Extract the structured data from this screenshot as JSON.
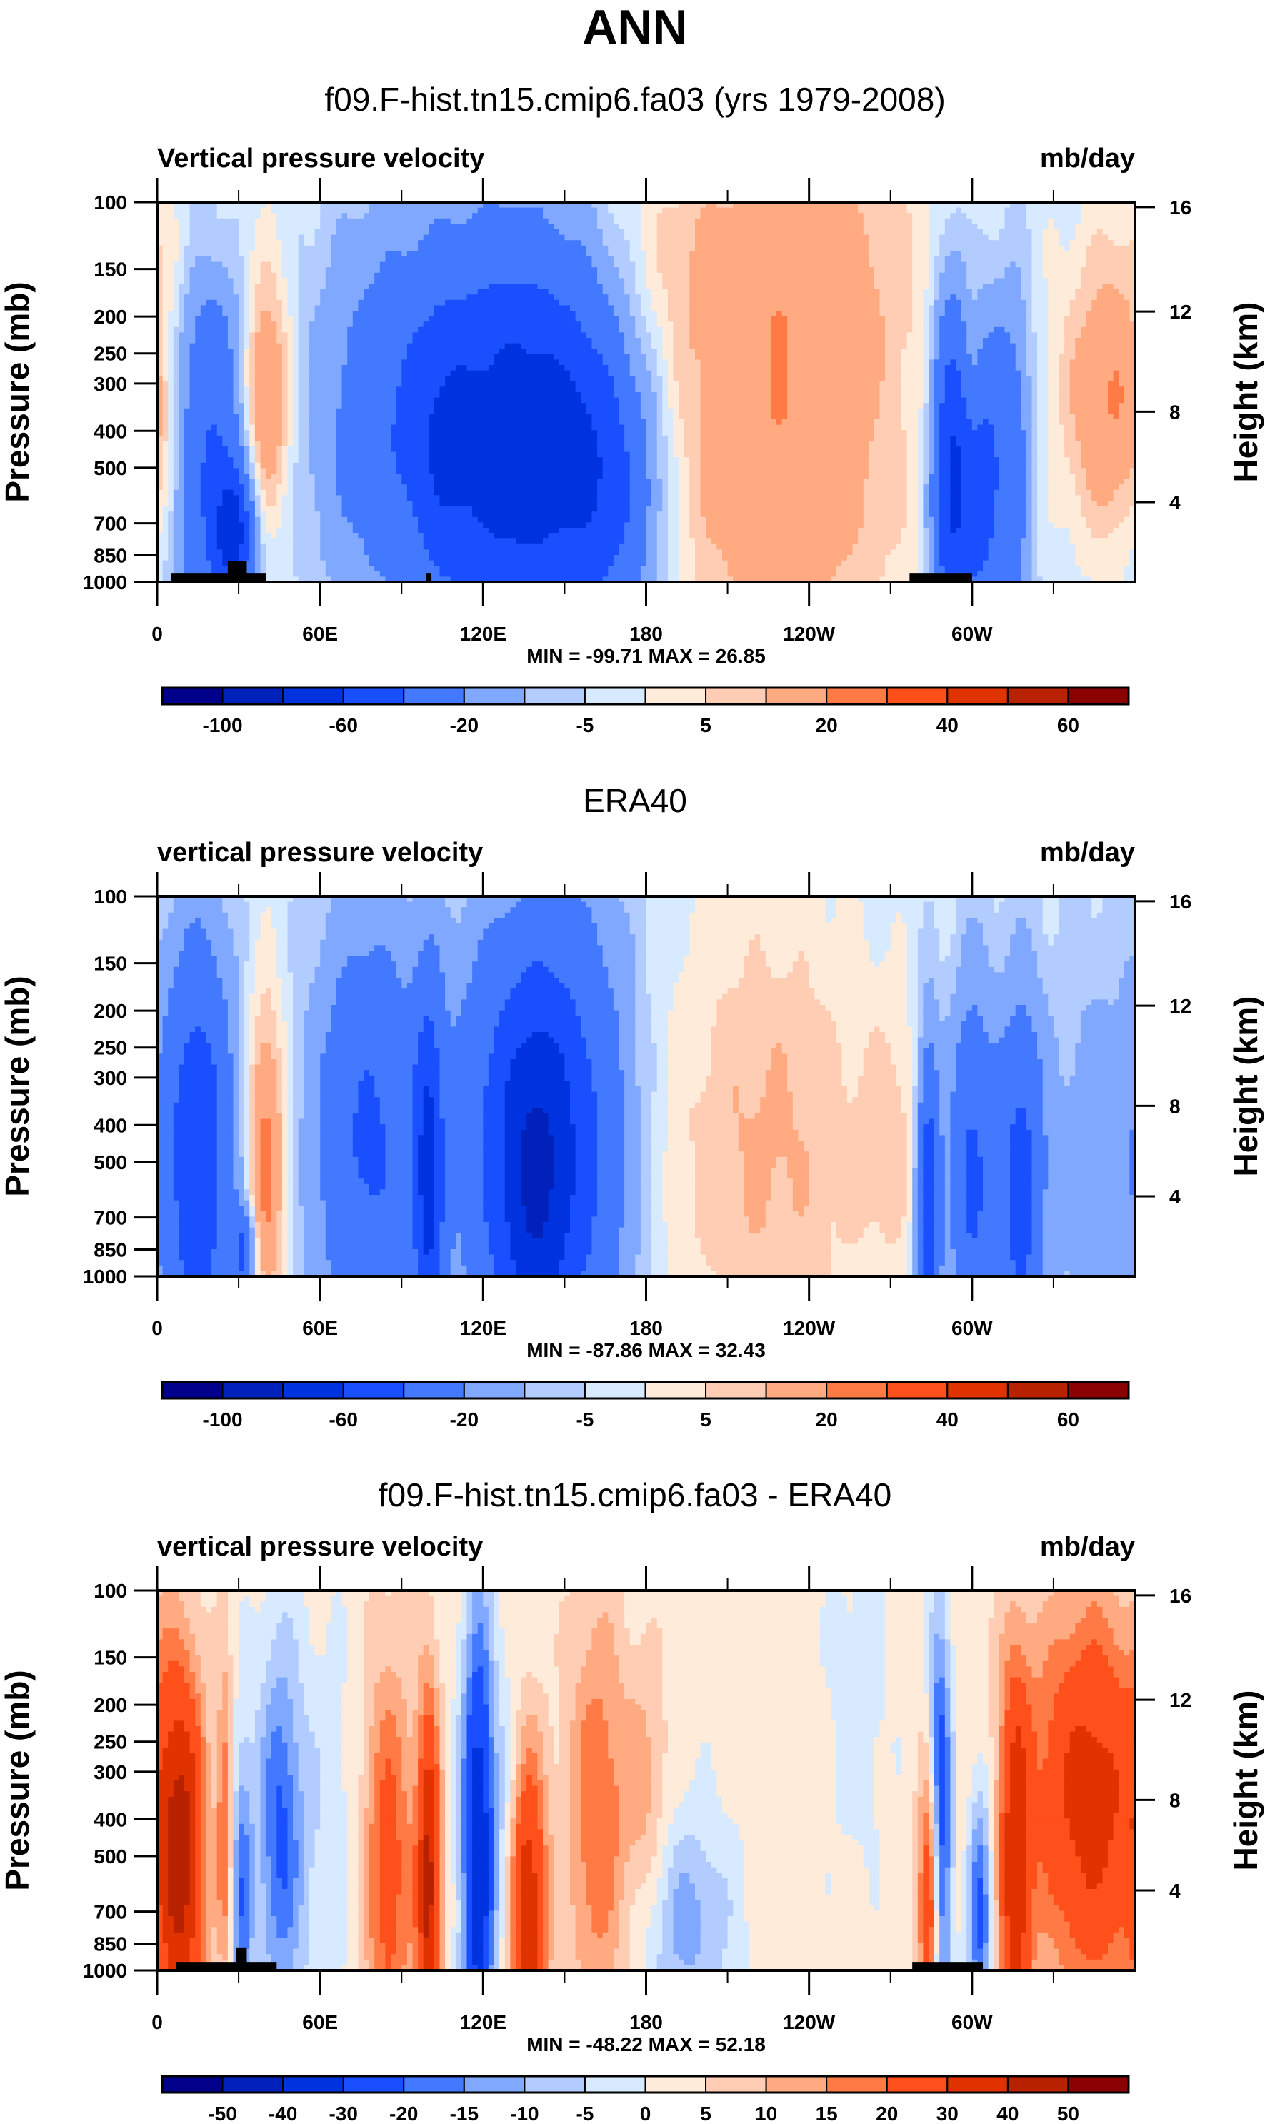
{
  "main_title": "ANN",
  "colors": {
    "palette": [
      "#00008b",
      "#0022bb",
      "#0033e0",
      "#1a4fff",
      "#4279ff",
      "#80a8ff",
      "#b3ccff",
      "#d7eaff",
      "#ffebd9",
      "#ffcdb3",
      "#ffaa80",
      "#ff7a45",
      "#ff4f1a",
      "#e03300",
      "#b82200",
      "#8b0000"
    ],
    "topography": "#000000",
    "frame": "#000000"
  },
  "chart_data": [
    {
      "type": "heatmap",
      "title": "f09.F-hist.tn15.cmip6.fa03 (yrs 1979-2008)",
      "left_string": "Vertical pressure velocity",
      "right_string": "mb/day",
      "xlabel": "",
      "ylabel": "Pressure (mb)",
      "y2label": "Height (km)",
      "x_range": [
        0,
        360
      ],
      "x_ticks": [
        {
          "v": 0,
          "label": "0"
        },
        {
          "v": 60,
          "label": "60E"
        },
        {
          "v": 120,
          "label": "120E"
        },
        {
          "v": 180,
          "label": "180"
        },
        {
          "v": 240,
          "label": "120W"
        },
        {
          "v": 300,
          "label": "60W"
        }
      ],
      "x_minor_ticks": [
        30,
        90,
        150,
        210,
        270,
        330
      ],
      "y_range": [
        100,
        1000
      ],
      "y_scale": "log",
      "y_ticks": [
        100,
        150,
        200,
        250,
        300,
        400,
        500,
        700,
        850,
        1000
      ],
      "y2_ticks": [
        {
          "km": 16,
          "p": 103
        },
        {
          "km": 12,
          "p": 194
        },
        {
          "km": 8,
          "p": 356
        },
        {
          "km": 4,
          "p": 616
        }
      ],
      "min_max_label": "MIN = -99.71  MAX =  26.85",
      "min": -99.71,
      "max": 26.85,
      "levels": [
        -100,
        -80,
        -60,
        -40,
        -20,
        -10,
        -5,
        0,
        5,
        10,
        20,
        30,
        40,
        50,
        60
      ],
      "colorbar_labels": [
        {
          "i": 1,
          "label": "-100"
        },
        {
          "i": 3,
          "label": "-60"
        },
        {
          "i": 5,
          "label": "-20"
        },
        {
          "i": 7,
          "label": "-5"
        },
        {
          "i": 9,
          "label": "5"
        },
        {
          "i": 11,
          "label": "20"
        },
        {
          "i": 13,
          "label": "40"
        },
        {
          "i": 15,
          "label": "60"
        }
      ],
      "base_value": -3,
      "features": [
        {
          "lon": 5,
          "p": 400,
          "dlon": 8,
          "dlogp": 0.25,
          "v": 10
        },
        {
          "lon": 18,
          "p": 450,
          "dlon": 10,
          "dlogp": 0.35,
          "v": -40
        },
        {
          "lon": 28,
          "p": 750,
          "dlon": 5,
          "dlogp": 0.12,
          "v": -55
        },
        {
          "lon": 40,
          "p": 330,
          "dlon": 6,
          "dlogp": 0.22,
          "v": 28
        },
        {
          "lon": 12,
          "p": 130,
          "dlon": 18,
          "dlogp": 0.12,
          "v": 6
        },
        {
          "lon": 90,
          "p": 380,
          "dlon": 20,
          "dlogp": 0.35,
          "v": -35
        },
        {
          "lon": 125,
          "p": 450,
          "dlon": 14,
          "dlogp": 0.4,
          "v": -45
        },
        {
          "lon": 150,
          "p": 430,
          "dlon": 16,
          "dlogp": 0.35,
          "v": -55
        },
        {
          "lon": 105,
          "p": 450,
          "dlon": 8,
          "dlogp": 0.3,
          "v": -20
        },
        {
          "lon": 170,
          "p": 600,
          "dlon": 12,
          "dlogp": 0.25,
          "v": -25
        },
        {
          "lon": 230,
          "p": 400,
          "dlon": 32,
          "dlogp": 0.45,
          "v": 22
        },
        {
          "lon": 230,
          "p": 130,
          "dlon": 45,
          "dlogp": 0.2,
          "v": 8
        },
        {
          "lon": 292,
          "p": 550,
          "dlon": 5,
          "dlogp": 0.35,
          "v": -55
        },
        {
          "lon": 303,
          "p": 550,
          "dlon": 6,
          "dlogp": 0.3,
          "v": -45
        },
        {
          "lon": 315,
          "p": 500,
          "dlon": 5,
          "dlogp": 0.35,
          "v": -25
        },
        {
          "lon": 300,
          "p": 300,
          "dlon": 3,
          "dlogp": 0.2,
          "v": 12
        },
        {
          "lon": 350,
          "p": 330,
          "dlon": 12,
          "dlogp": 0.25,
          "v": 22
        }
      ],
      "topography": [
        {
          "lon0": 5,
          "lon1": 40,
          "p": 950
        },
        {
          "lon0": 26,
          "lon1": 33,
          "p": 880
        },
        {
          "lon0": 99,
          "lon1": 101,
          "p": 950
        },
        {
          "lon0": 277,
          "lon1": 300,
          "p": 950
        }
      ]
    },
    {
      "type": "heatmap",
      "title": "ERA40",
      "left_string": "vertical pressure velocity",
      "right_string": "mb/day",
      "xlabel": "",
      "ylabel": "Pressure (mb)",
      "y2label": "Height (km)",
      "x_range": [
        0,
        360
      ],
      "x_ticks": [
        {
          "v": 0,
          "label": "0"
        },
        {
          "v": 60,
          "label": "60E"
        },
        {
          "v": 120,
          "label": "120E"
        },
        {
          "v": 180,
          "label": "180"
        },
        {
          "v": 240,
          "label": "120W"
        },
        {
          "v": 300,
          "label": "60W"
        }
      ],
      "x_minor_ticks": [
        30,
        90,
        150,
        210,
        270,
        330
      ],
      "y_range": [
        100,
        1000
      ],
      "y_scale": "log",
      "y_ticks": [
        100,
        150,
        200,
        250,
        300,
        400,
        500,
        700,
        850,
        1000
      ],
      "y2_ticks": [
        {
          "km": 16,
          "p": 103
        },
        {
          "km": 12,
          "p": 194
        },
        {
          "km": 8,
          "p": 356
        },
        {
          "km": 4,
          "p": 616
        }
      ],
      "min_max_label": "MIN = -87.86  MAX =  32.43",
      "min": -87.86,
      "max": 32.43,
      "levels": [
        -100,
        -80,
        -60,
        -40,
        -20,
        -10,
        -5,
        0,
        5,
        10,
        20,
        30,
        40,
        50,
        60
      ],
      "colorbar_labels": [
        {
          "i": 1,
          "label": "-100"
        },
        {
          "i": 3,
          "label": "-60"
        },
        {
          "i": 5,
          "label": "-20"
        },
        {
          "i": 7,
          "label": "-5"
        },
        {
          "i": 9,
          "label": "5"
        },
        {
          "i": 11,
          "label": "20"
        },
        {
          "i": 13,
          "label": "40"
        },
        {
          "i": 15,
          "label": "60"
        }
      ],
      "base_value": -3,
      "features": [
        {
          "lon": 15,
          "p": 500,
          "dlon": 9,
          "dlogp": 0.4,
          "v": -55
        },
        {
          "lon": 40,
          "p": 500,
          "dlon": 5,
          "dlogp": 0.3,
          "v": 28
        },
        {
          "lon": 32,
          "p": 880,
          "dlon": 3,
          "dlogp": 0.08,
          "v": -40
        },
        {
          "lon": 78,
          "p": 450,
          "dlon": 14,
          "dlogp": 0.4,
          "v": -40
        },
        {
          "lon": 100,
          "p": 550,
          "dlon": 4,
          "dlogp": 0.35,
          "v": -55
        },
        {
          "lon": 138,
          "p": 550,
          "dlon": 10,
          "dlogp": 0.4,
          "v": -60
        },
        {
          "lon": 155,
          "p": 450,
          "dlon": 14,
          "dlogp": 0.45,
          "v": -40
        },
        {
          "lon": 120,
          "p": 400,
          "dlon": 10,
          "dlogp": 0.4,
          "v": -25
        },
        {
          "lon": 225,
          "p": 450,
          "dlon": 28,
          "dlogp": 0.45,
          "v": 14
        },
        {
          "lon": 270,
          "p": 450,
          "dlon": 8,
          "dlogp": 0.25,
          "v": 8
        },
        {
          "lon": 284,
          "p": 650,
          "dlon": 3,
          "dlogp": 0.3,
          "v": -55
        },
        {
          "lon": 300,
          "p": 550,
          "dlon": 6,
          "dlogp": 0.35,
          "v": -40
        },
        {
          "lon": 318,
          "p": 600,
          "dlon": 6,
          "dlogp": 0.35,
          "v": -45
        },
        {
          "lon": 345,
          "p": 500,
          "dlon": 12,
          "dlogp": 0.4,
          "v": -12
        }
      ],
      "topography": []
    },
    {
      "type": "heatmap",
      "title": "f09.F-hist.tn15.cmip6.fa03 - ERA40",
      "left_string": "vertical pressure velocity",
      "right_string": "mb/day",
      "xlabel": "",
      "ylabel": "Pressure (mb)",
      "y2label": "Height (km)",
      "x_range": [
        0,
        360
      ],
      "x_ticks": [
        {
          "v": 0,
          "label": "0"
        },
        {
          "v": 60,
          "label": "60E"
        },
        {
          "v": 120,
          "label": "120E"
        },
        {
          "v": 180,
          "label": "180"
        },
        {
          "v": 240,
          "label": "120W"
        },
        {
          "v": 300,
          "label": "60W"
        }
      ],
      "x_minor_ticks": [
        30,
        90,
        150,
        210,
        270,
        330
      ],
      "y_range": [
        100,
        1000
      ],
      "y_scale": "log",
      "y_ticks": [
        100,
        150,
        200,
        250,
        300,
        400,
        500,
        700,
        850,
        1000
      ],
      "y2_ticks": [
        {
          "km": 16,
          "p": 103
        },
        {
          "km": 12,
          "p": 194
        },
        {
          "km": 8,
          "p": 356
        },
        {
          "km": 4,
          "p": 616
        }
      ],
      "min_max_label": "MIN = -48.22  MAX =  52.18",
      "min": -48.22,
      "max": 52.18,
      "levels": [
        -50,
        -40,
        -30,
        -20,
        -15,
        -10,
        -5,
        0,
        5,
        10,
        15,
        20,
        30,
        40,
        50
      ],
      "colorbar_labels": [
        {
          "i": 1,
          "label": "-50"
        },
        {
          "i": 2,
          "label": "-40"
        },
        {
          "i": 3,
          "label": "-30"
        },
        {
          "i": 4,
          "label": "-20"
        },
        {
          "i": 5,
          "label": "-15"
        },
        {
          "i": 6,
          "label": "-10"
        },
        {
          "i": 7,
          "label": "-5"
        },
        {
          "i": 8,
          "label": "0"
        },
        {
          "i": 9,
          "label": "5"
        },
        {
          "i": 10,
          "label": "10"
        },
        {
          "i": 11,
          "label": "15"
        },
        {
          "i": 12,
          "label": "20"
        },
        {
          "i": 13,
          "label": "30"
        },
        {
          "i": 14,
          "label": "40"
        },
        {
          "i": 15,
          "label": "50"
        }
      ],
      "base_value": 2,
      "features": [
        {
          "lon": 9,
          "p": 520,
          "dlon": 6,
          "dlogp": 0.35,
          "v": 38
        },
        {
          "lon": 25,
          "p": 420,
          "dlon": 2,
          "dlogp": 0.3,
          "v": 18
        },
        {
          "lon": 31,
          "p": 650,
          "dlon": 3,
          "dlogp": 0.3,
          "v": -20
        },
        {
          "lon": 45,
          "p": 430,
          "dlon": 6,
          "dlogp": 0.35,
          "v": -22
        },
        {
          "lon": 62,
          "p": 500,
          "dlon": 10,
          "dlogp": 0.4,
          "v": -6
        },
        {
          "lon": 85,
          "p": 550,
          "dlon": 7,
          "dlogp": 0.4,
          "v": 22
        },
        {
          "lon": 100,
          "p": 600,
          "dlon": 3,
          "dlogp": 0.35,
          "v": 40
        },
        {
          "lon": 118,
          "p": 500,
          "dlon": 4,
          "dlogp": 0.45,
          "v": -40
        },
        {
          "lon": 128,
          "p": 450,
          "dlon": 5,
          "dlogp": 0.3,
          "v": -10
        },
        {
          "lon": 136,
          "p": 700,
          "dlon": 5,
          "dlogp": 0.3,
          "v": 38
        },
        {
          "lon": 162,
          "p": 400,
          "dlon": 8,
          "dlogp": 0.4,
          "v": 18
        },
        {
          "lon": 180,
          "p": 350,
          "dlon": 6,
          "dlogp": 0.25,
          "v": 10
        },
        {
          "lon": 195,
          "p": 750,
          "dlon": 12,
          "dlogp": 0.2,
          "v": -14
        },
        {
          "lon": 258,
          "p": 200,
          "dlon": 8,
          "dlogp": 0.3,
          "v": -5
        },
        {
          "lon": 285,
          "p": 650,
          "dlon": 3,
          "dlogp": 0.25,
          "v": 42
        },
        {
          "lon": 288,
          "p": 500,
          "dlon": 3,
          "dlogp": 0.4,
          "v": -40
        },
        {
          "lon": 303,
          "p": 700,
          "dlon": 3,
          "dlogp": 0.25,
          "v": -25
        },
        {
          "lon": 316,
          "p": 600,
          "dlon": 4,
          "dlogp": 0.4,
          "v": 32
        },
        {
          "lon": 345,
          "p": 400,
          "dlon": 14,
          "dlogp": 0.4,
          "v": 24
        },
        {
          "lon": 335,
          "p": 300,
          "dlon": 20,
          "dlogp": 0.3,
          "v": 10
        }
      ],
      "topography": [
        {
          "lon0": 7,
          "lon1": 44,
          "p": 950
        },
        {
          "lon0": 29,
          "lon1": 33,
          "p": 870
        },
        {
          "lon0": 278,
          "lon1": 304,
          "p": 950
        }
      ]
    }
  ]
}
